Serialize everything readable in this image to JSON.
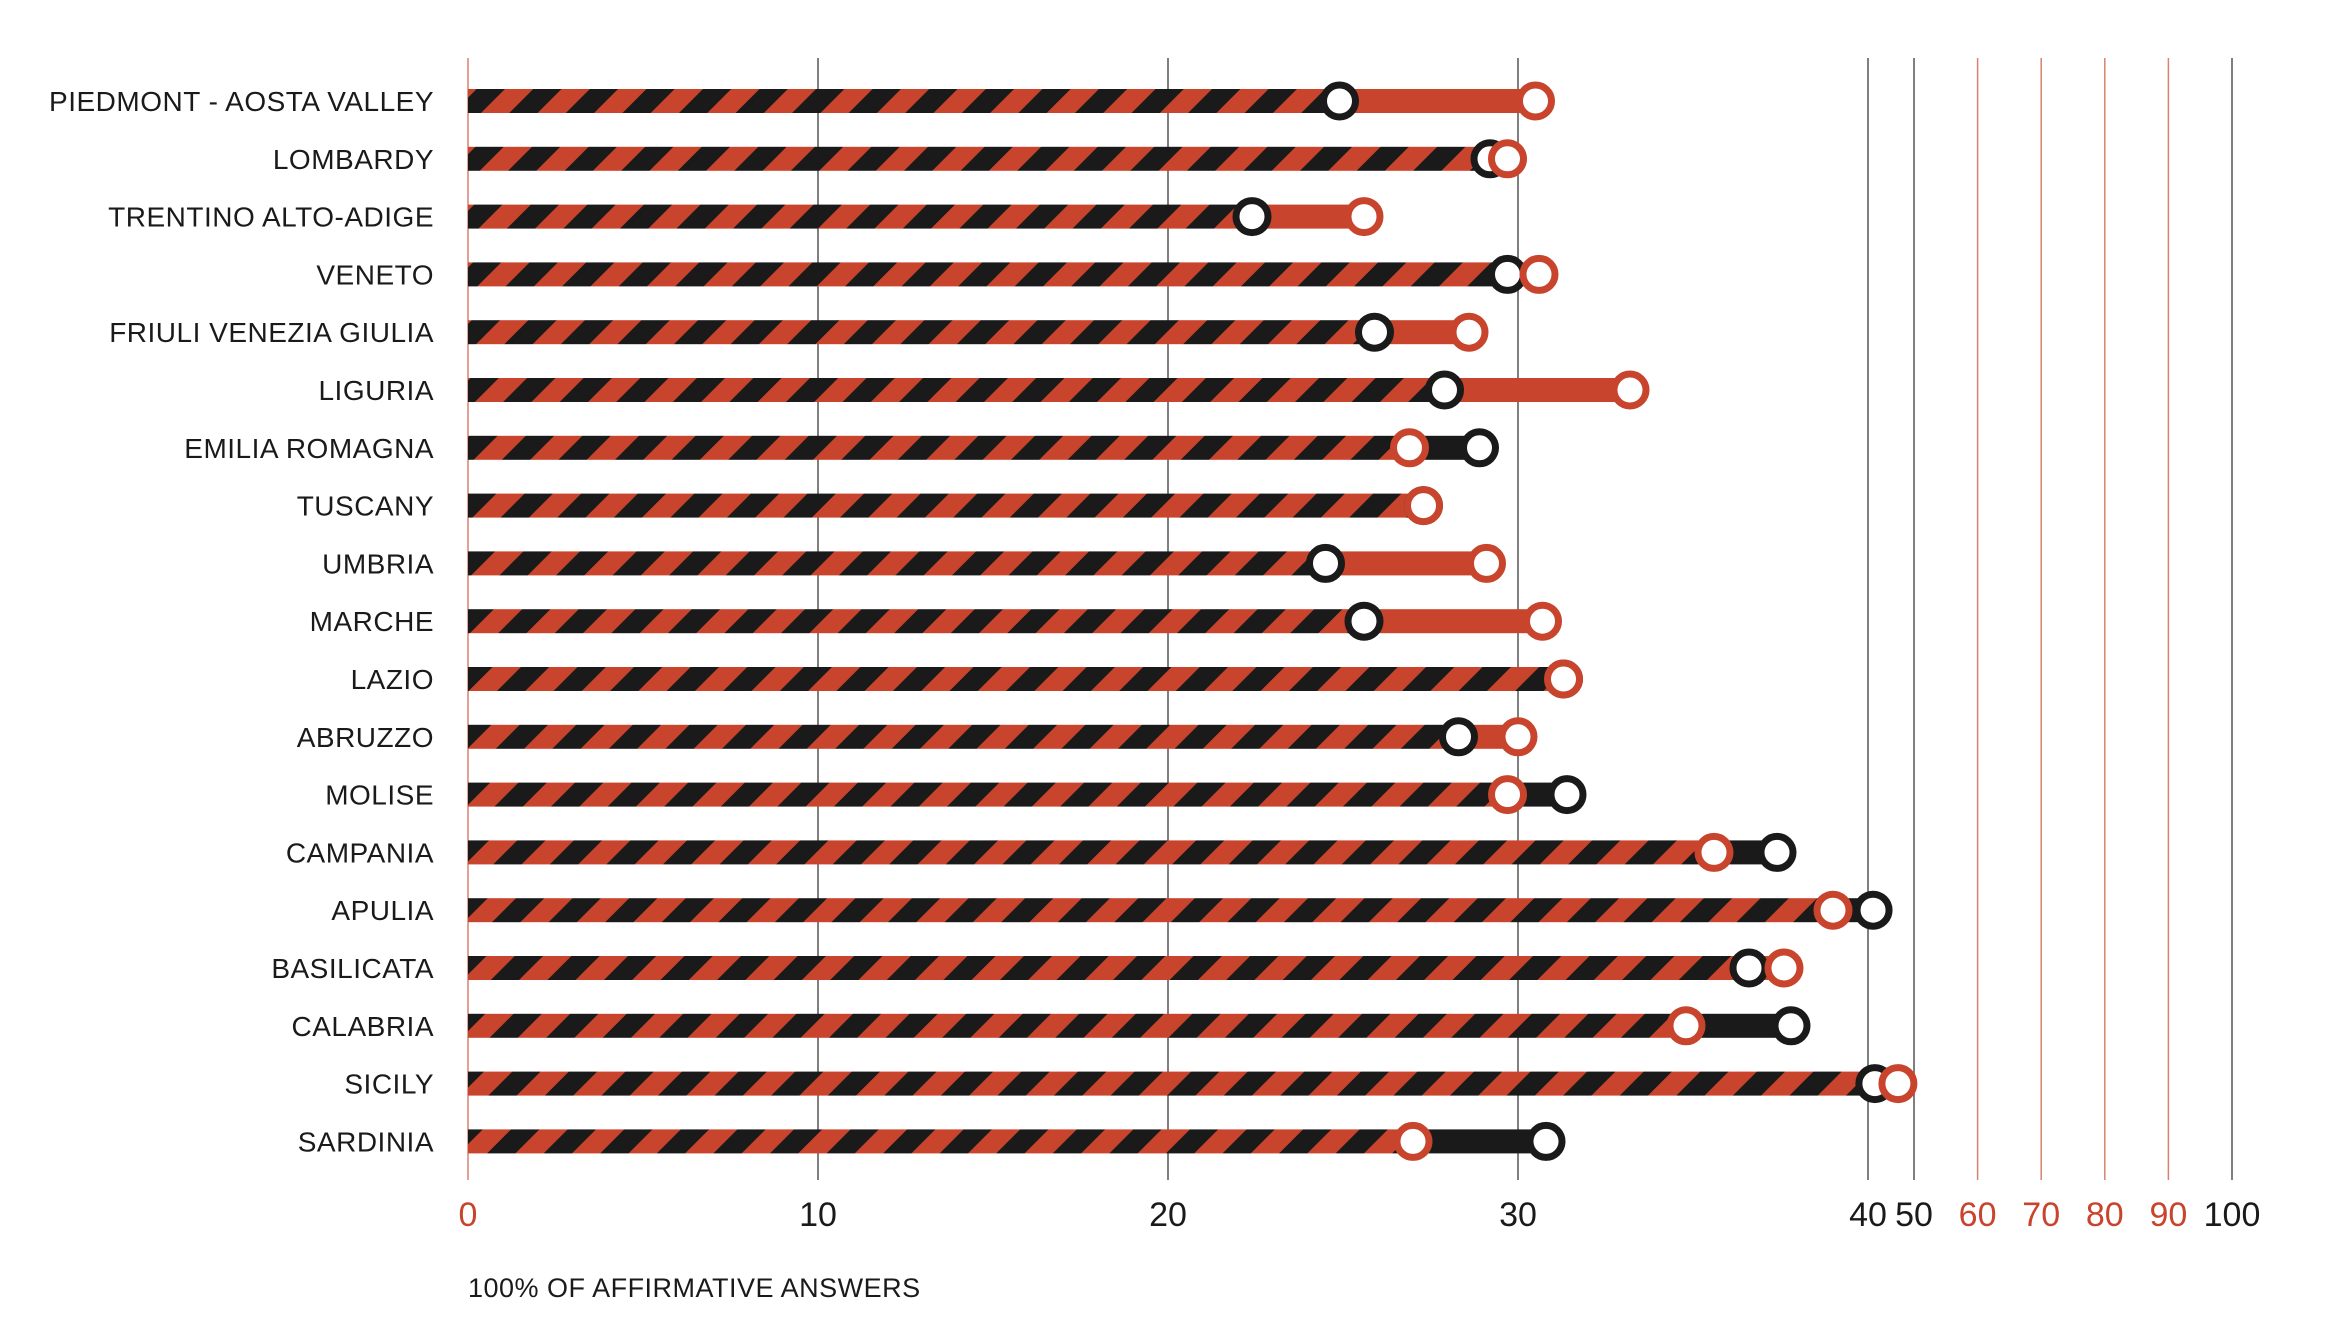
{
  "colors": {
    "red": "#c8442c",
    "black": "#1a1a1a",
    "grid_dark": "#555555",
    "grid_red": "#d9826f"
  },
  "chart_data": {
    "type": "dumbbell",
    "title": "",
    "xlabel": "100% OF AFFIRMATIVE ANSWERS",
    "ylabel": "",
    "x_axis": {
      "ticks_black": [
        10,
        20,
        30,
        40,
        50,
        100
      ],
      "ticks_red": [
        0,
        60,
        70,
        80,
        90
      ],
      "note": "non-linear axis: 0-50 on an expanded scale, 50-100 compressed"
    },
    "categories": [
      "PIEDMONT - AOSTA VALLEY",
      "LOMBARDY",
      "TRENTINO ALTO-ADIGE",
      "VENETO",
      "FRIULI VENEZIA GIULIA",
      "LIGURIA",
      "EMILIA ROMAGNA",
      "TUSCANY",
      "UMBRIA",
      "MARCHE",
      "LAZIO",
      "ABRUZZO",
      "MOLISE",
      "CAMPANIA",
      "APULIA",
      "BASILICATA",
      "CALABRIA",
      "SICILY",
      "SARDINIA"
    ],
    "series": [
      {
        "color": "#1a1a1a",
        "values": [
          24.9,
          29.2,
          22.4,
          29.7,
          25.9,
          27.9,
          28.9,
          27.3,
          24.5,
          25.6,
          31.3,
          28.3,
          31.4,
          37.4,
          41.1,
          36.6,
          37.8,
          41.5,
          30.8
        ]
      },
      {
        "color": "#c8442c",
        "values": [
          30.5,
          29.7,
          25.6,
          30.6,
          28.6,
          33.2,
          26.9,
          27.3,
          29.1,
          30.7,
          31.3,
          30.0,
          29.7,
          35.6,
          39.0,
          37.6,
          34.8,
          46.5,
          27.0
        ]
      }
    ]
  }
}
